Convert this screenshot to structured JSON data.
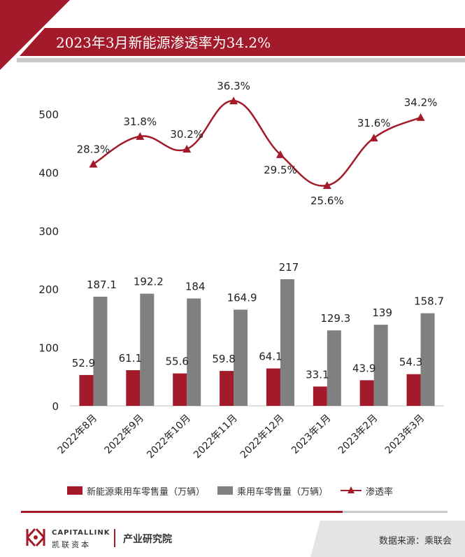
{
  "title": "2023年3月新能源渗透率为34.2%",
  "chart_data": {
    "type": "bar+line",
    "categories": [
      "2022年8月",
      "2022年9月",
      "2022年10月",
      "2022年11月",
      "2022年12月",
      "2023年1月",
      "2023年2月",
      "2023年3月"
    ],
    "series": [
      {
        "name": "新能源乘用车零售量（万辆）",
        "kind": "bar",
        "color": "#a31a2a",
        "values": [
          52.9,
          61.1,
          55.6,
          59.8,
          64.1,
          33.1,
          43.9,
          54.3
        ],
        "labels": [
          "52.9",
          "61.1",
          "55.6",
          "59.8",
          "64.1",
          "33.1",
          "43.9",
          "54.3"
        ]
      },
      {
        "name": "乘用车零售量（万辆）",
        "kind": "bar",
        "color": "#808080",
        "values": [
          187.1,
          192.2,
          184,
          164.9,
          217,
          129.3,
          139,
          158.7
        ],
        "labels": [
          "187.1",
          "192.2",
          "184",
          "164.9",
          "217",
          "129.3",
          "139",
          "158.7"
        ]
      },
      {
        "name": "渗透率",
        "kind": "line",
        "color": "#a31a2a",
        "values": [
          28.3,
          31.8,
          30.2,
          36.3,
          29.5,
          25.6,
          31.6,
          34.2
        ],
        "labels": [
          "28.3%",
          "31.8%",
          "30.2%",
          "36.3%",
          "29.5%",
          "25.6%",
          "31.6%",
          "34.2%"
        ]
      }
    ],
    "ylim": [
      0,
      500
    ],
    "yticks": [
      "0",
      "100",
      "200",
      "300",
      "400",
      "500"
    ],
    "ytick_values": [
      0,
      100,
      200,
      300,
      400,
      500
    ],
    "legend_position": "bottom",
    "grid": false
  },
  "legend": {
    "bar1": "新能源乘用车零售量（万辆）",
    "bar2": "乘用车零售量（万辆）",
    "line": "渗透率"
  },
  "footer": {
    "brand_en": "CAPITALLINK",
    "brand_cn": "凯联资本",
    "dept": "产业研究院",
    "source": "数据来源：乘联会"
  },
  "colors": {
    "accent": "#a31a2a",
    "gray": "#808080",
    "light_gray": "#c9c9c9"
  }
}
